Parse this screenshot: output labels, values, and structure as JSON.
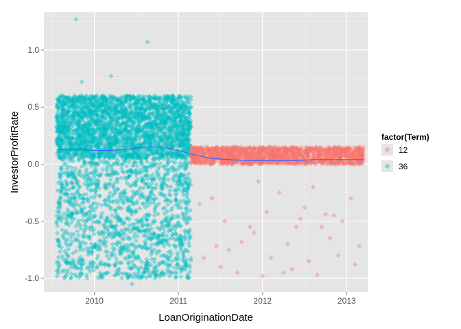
{
  "chart_data": {
    "type": "scatter",
    "title": "",
    "xlabel": "LoanOriginationDate",
    "ylabel": "InvestorProfitRate",
    "x_ticks": [
      2010,
      2011,
      2012,
      2013
    ],
    "y_ticks": [
      "-1.0",
      "-0.5",
      "0.0",
      "0.5",
      "1.0"
    ],
    "y_tick_values": [
      -1.0,
      -0.5,
      0.0,
      0.5,
      1.0
    ],
    "xlim": [
      2009.4,
      2013.25
    ],
    "ylim": [
      -1.12,
      1.33
    ],
    "grid": true,
    "legend": {
      "title": "factor(Term)",
      "placement": "right",
      "items": [
        {
          "label": "12",
          "color": "#F8766D"
        },
        {
          "label": "36",
          "color": "#00BFC4"
        }
      ]
    },
    "series": [
      {
        "name": "12",
        "color": "#F8766D",
        "x_range": [
          2011.15,
          2013.2
        ],
        "dense_band": [
          0.0,
          0.15
        ],
        "outliers": [
          [
            2011.25,
            -0.35
          ],
          [
            2011.3,
            -0.82
          ],
          [
            2011.4,
            -0.3
          ],
          [
            2011.45,
            -0.72
          ],
          [
            2011.5,
            -0.9
          ],
          [
            2011.55,
            -0.5
          ],
          [
            2011.6,
            -0.75
          ],
          [
            2011.7,
            -0.95
          ],
          [
            2011.85,
            -0.55
          ],
          [
            2011.9,
            -0.6
          ],
          [
            2011.95,
            -0.15
          ],
          [
            2012.05,
            -0.42
          ],
          [
            2012.1,
            -0.82
          ],
          [
            2012.2,
            -0.25
          ],
          [
            2012.25,
            -0.95
          ],
          [
            2012.3,
            -0.7
          ],
          [
            2012.4,
            -0.55
          ],
          [
            2012.45,
            -0.48
          ],
          [
            2012.5,
            -0.38
          ],
          [
            2012.55,
            -0.85
          ],
          [
            2012.6,
            -0.2
          ],
          [
            2012.7,
            -0.55
          ],
          [
            2012.75,
            -0.44
          ],
          [
            2012.8,
            -0.65
          ],
          [
            2012.85,
            -0.45
          ],
          [
            2012.9,
            -0.8
          ],
          [
            2012.95,
            -0.5
          ],
          [
            2013.05,
            -0.3
          ],
          [
            2013.1,
            -0.88
          ],
          [
            2013.15,
            -0.72
          ],
          [
            2012.0,
            -0.98
          ],
          [
            2011.75,
            -0.68
          ],
          [
            2012.35,
            -0.92
          ],
          [
            2012.65,
            -0.97
          ]
        ]
      },
      {
        "name": "36",
        "color": "#00BFC4",
        "x_range": [
          2009.55,
          2011.15
        ],
        "dense_band": [
          0.05,
          0.6
        ],
        "sparse_band": [
          -1.0,
          0.05
        ],
        "outliers": [
          [
            2009.78,
            1.27
          ],
          [
            2010.63,
            1.07
          ],
          [
            2010.2,
            0.77
          ],
          [
            2009.85,
            0.72
          ],
          [
            2010.45,
            -1.05
          ]
        ]
      }
    ],
    "smooth_line": {
      "color": "#3366FF",
      "x": [
        2009.55,
        2009.8,
        2010.0,
        2010.2,
        2010.4,
        2010.6,
        2010.8,
        2011.0,
        2011.2,
        2011.4,
        2011.6,
        2011.8,
        2012.0,
        2012.2,
        2012.4,
        2012.6,
        2012.8,
        2013.0,
        2013.2
      ],
      "y": [
        0.13,
        0.13,
        0.12,
        0.12,
        0.13,
        0.15,
        0.15,
        0.12,
        0.08,
        0.05,
        0.04,
        0.03,
        0.03,
        0.03,
        0.03,
        0.04,
        0.04,
        0.04,
        0.04
      ]
    }
  }
}
